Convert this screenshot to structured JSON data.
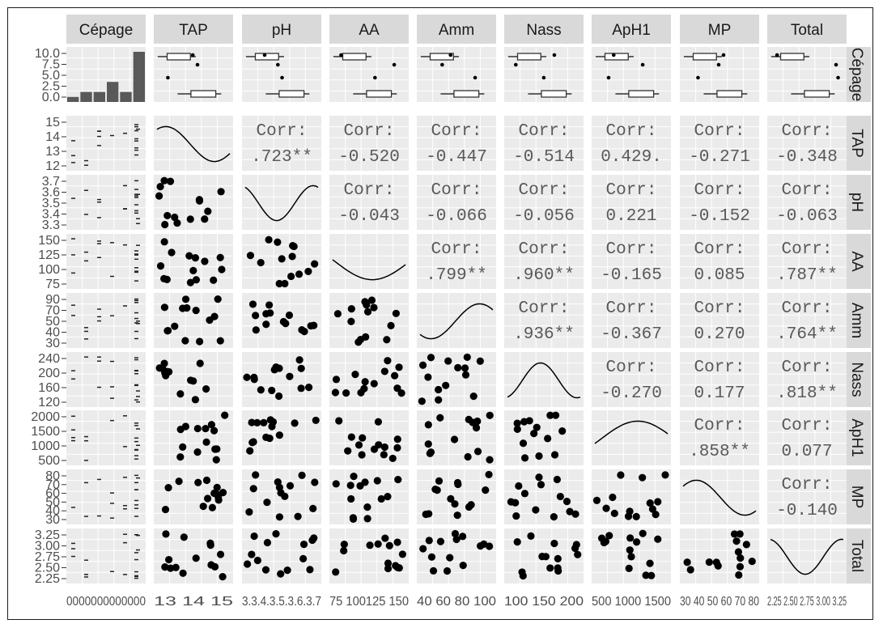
{
  "chart_data": {
    "type": "scatter-matrix",
    "variables": [
      "Cépage",
      "TAP",
      "pH",
      "AA",
      "Amm",
      "Nass",
      "ApH1",
      "MP",
      "Total"
    ],
    "cepage_bar_counts": [
      1,
      2,
      2,
      4,
      2,
      10
    ],
    "top_row_tick_labels": [
      "10.0",
      "7.5",
      "5.0",
      "2.5",
      "0.0"
    ],
    "y_axis_ticks": {
      "TAP": [
        "15",
        "14",
        "13",
        "12"
      ],
      "pH": [
        "3.7",
        "3.6",
        "3.5",
        "3.4",
        "3.3"
      ],
      "AA": [
        "150",
        "125",
        "100",
        "75"
      ],
      "Amm": [
        "90",
        "70",
        "50",
        "40",
        "30"
      ],
      "Nass": [
        "240",
        "200",
        "160",
        "120"
      ],
      "ApH1": [
        "2000",
        "1500",
        "1000",
        "500"
      ],
      "MP": [
        "80",
        "70",
        "60",
        "50",
        "40",
        "30"
      ],
      "Total": [
        "3.25",
        "3.00",
        "2.75",
        "2.50",
        "2.25"
      ]
    },
    "x_axis_tick_text": [
      "0000000000000",
      "13  14  15",
      "3.3.4.3.5.3.6.3.7",
      "75 100125 150",
      "40  60  80 100",
      "100 150 200",
      "500 1000 1500",
      "30 40 50 60 70 80",
      "2.25 2.50 2.75 3.00 3.25"
    ],
    "correlations": [
      {
        "row": "TAP",
        "col": "pH",
        "label": "Corr:",
        "value": ".723**"
      },
      {
        "row": "TAP",
        "col": "AA",
        "label": "Corr:",
        "value": "-0.520"
      },
      {
        "row": "TAP",
        "col": "Amm",
        "label": "Corr:",
        "value": "-0.447"
      },
      {
        "row": "TAP",
        "col": "Nass",
        "label": "Corr:",
        "value": "-0.514"
      },
      {
        "row": "TAP",
        "col": "ApH1",
        "label": "Corr:",
        "value": "0.429."
      },
      {
        "row": "TAP",
        "col": "MP",
        "label": "Corr:",
        "value": "-0.271"
      },
      {
        "row": "TAP",
        "col": "Total",
        "label": "Corr:",
        "value": "-0.348"
      },
      {
        "row": "pH",
        "col": "AA",
        "label": "Corr:",
        "value": "-0.043"
      },
      {
        "row": "pH",
        "col": "Amm",
        "label": "Corr:",
        "value": "-0.066"
      },
      {
        "row": "pH",
        "col": "Nass",
        "label": "Corr:",
        "value": "-0.056"
      },
      {
        "row": "pH",
        "col": "ApH1",
        "label": "Corr:",
        "value": "0.221"
      },
      {
        "row": "pH",
        "col": "MP",
        "label": "Corr:",
        "value": "-0.152"
      },
      {
        "row": "pH",
        "col": "Total",
        "label": "Corr:",
        "value": "-0.063"
      },
      {
        "row": "AA",
        "col": "Amm",
        "label": "Corr:",
        "value": ".799**"
      },
      {
        "row": "AA",
        "col": "Nass",
        "label": "Corr:",
        "value": ".960**"
      },
      {
        "row": "AA",
        "col": "ApH1",
        "label": "Corr:",
        "value": "-0.165"
      },
      {
        "row": "AA",
        "col": "MP",
        "label": "Corr:",
        "value": "0.085"
      },
      {
        "row": "AA",
        "col": "Total",
        "label": "Corr:",
        "value": ".787**"
      },
      {
        "row": "Amm",
        "col": "Nass",
        "label": "Corr:",
        "value": ".936**"
      },
      {
        "row": "Amm",
        "col": "ApH1",
        "label": "Corr:",
        "value": "-0.367"
      },
      {
        "row": "Amm",
        "col": "MP",
        "label": "Corr:",
        "value": "0.270"
      },
      {
        "row": "Amm",
        "col": "Total",
        "label": "Corr:",
        "value": ".764**"
      },
      {
        "row": "Nass",
        "col": "ApH1",
        "label": "Corr:",
        "value": "-0.270"
      },
      {
        "row": "Nass",
        "col": "MP",
        "label": "Corr:",
        "value": "0.177"
      },
      {
        "row": "Nass",
        "col": "Total",
        "label": "Corr:",
        "value": ".818**"
      },
      {
        "row": "ApH1",
        "col": "MP",
        "label": "Corr:",
        "value": ".858**"
      },
      {
        "row": "ApH1",
        "col": "Total",
        "label": "Corr:",
        "value": "0.077"
      },
      {
        "row": "MP",
        "col": "Total",
        "label": "Corr:",
        "value": "-0.140"
      }
    ],
    "grid": true,
    "panel_background": "#ebebeb",
    "strip_background": "#d9d9d9",
    "point_color": "#000000"
  }
}
